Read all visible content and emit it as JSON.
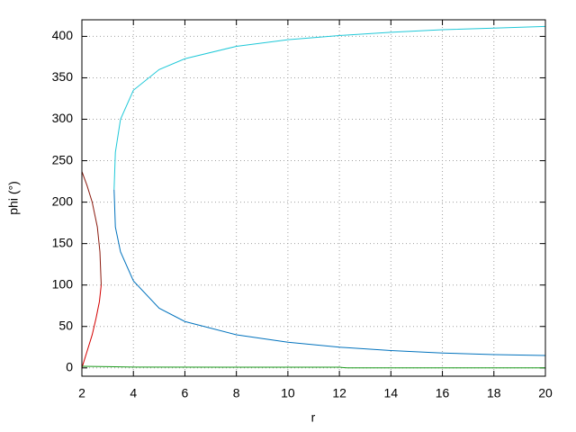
{
  "chart_data": {
    "type": "line",
    "xlabel": "r",
    "ylabel": "phi (°)",
    "xlim": [
      2,
      20
    ],
    "ylim": [
      -10,
      420
    ],
    "xticks": [
      2,
      4,
      6,
      8,
      10,
      12,
      14,
      16,
      18,
      20
    ],
    "yticks": [
      0,
      50,
      100,
      150,
      200,
      250,
      300,
      350,
      400
    ],
    "grid": true,
    "series": [
      {
        "color": "#d40000",
        "x": [
          2,
          2.2,
          2.4,
          2.55,
          2.68,
          2.75
        ],
        "values": [
          0,
          20,
          40,
          60,
          80,
          100
        ]
      },
      {
        "color": "#8b1a0e",
        "x": [
          2.75,
          2.7,
          2.6,
          2.4,
          2.2,
          2
        ],
        "values": [
          100,
          140,
          170,
          200,
          220,
          237
        ]
      },
      {
        "color": "#1fc8d8",
        "x": [
          3.25,
          3.3,
          3.5,
          4,
          5,
          6,
          8,
          10,
          12,
          14,
          16,
          18,
          20
        ],
        "values": [
          215,
          260,
          300,
          335,
          360,
          373,
          388,
          396,
          401,
          405,
          408,
          410,
          412
        ]
      },
      {
        "color": "#0072bd",
        "x": [
          3.25,
          3.3,
          3.5,
          4,
          5,
          6,
          8,
          10,
          12,
          14,
          16,
          18,
          20
        ],
        "values": [
          215,
          170,
          140,
          105,
          72,
          56,
          40,
          31,
          25,
          21,
          18,
          16,
          15
        ]
      },
      {
        "color": "#1a9a1a",
        "x": [
          2,
          3,
          4,
          10,
          12,
          12.3,
          20
        ],
        "values": [
          2,
          1.5,
          1,
          0.8,
          0.8,
          0,
          0
        ]
      }
    ]
  }
}
